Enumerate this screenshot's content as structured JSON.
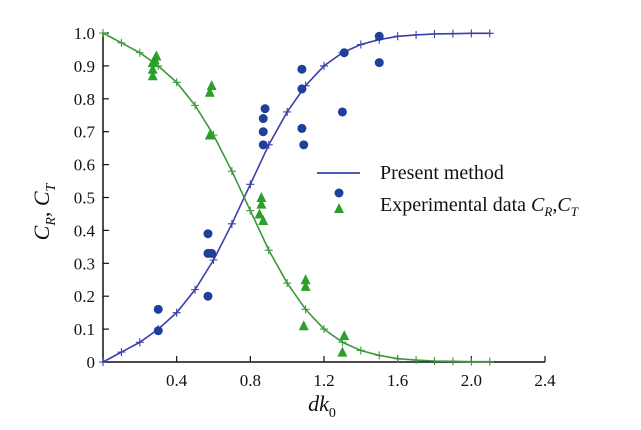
{
  "chart_data": {
    "type": "scatter",
    "xlabel": "dk",
    "xlabel_sub": "0",
    "ylabel": "C",
    "ylabel_sub1": "R",
    "ylabel_sep": ", ",
    "ylabel_sub2": "T",
    "xlim": [
      0,
      2.4
    ],
    "ylim": [
      0,
      1.0
    ],
    "xticks": [
      0.4,
      0.8,
      1.2,
      1.6,
      2.0,
      2.4
    ],
    "xtick_labels": [
      "0.4",
      "0.8",
      "1.2",
      "1.6",
      "2.0",
      "2.4"
    ],
    "yticks": [
      0,
      0.1,
      0.2,
      0.3,
      0.4,
      0.5,
      0.6,
      0.7,
      0.8,
      0.9,
      1.0
    ],
    "ytick_labels": [
      "0",
      "0.1",
      "0.2",
      "0.3",
      "0.4",
      "0.5",
      "0.6",
      "0.7",
      "0.8",
      "0.9",
      "1.0"
    ],
    "legend_position": "center-right",
    "legend": {
      "line_label": "Present method",
      "marker_label": "Experimental data ",
      "marker_label_c": "C",
      "marker_label_sub1": "R",
      "marker_label_sep": ",",
      "marker_label_c2": "C",
      "marker_label_sub2": "T"
    },
    "series": [
      {
        "style": "line-plus",
        "color": "#3b3fa8",
        "x": [
          0.0,
          0.1,
          0.2,
          0.3,
          0.4,
          0.5,
          0.6,
          0.7,
          0.8,
          0.9,
          1.0,
          1.1,
          1.2,
          1.3,
          1.4,
          1.5,
          1.6,
          1.7,
          1.8,
          1.9,
          2.0,
          2.1
        ],
        "y": [
          0.0,
          0.03,
          0.06,
          0.1,
          0.15,
          0.22,
          0.31,
          0.42,
          0.54,
          0.66,
          0.76,
          0.84,
          0.9,
          0.94,
          0.965,
          0.98,
          0.99,
          0.994,
          0.997,
          0.998,
          0.999,
          0.999
        ]
      },
      {
        "style": "line-plus",
        "color": "#3a9a3a",
        "x": [
          0.0,
          0.1,
          0.2,
          0.3,
          0.4,
          0.5,
          0.6,
          0.7,
          0.8,
          0.9,
          1.0,
          1.1,
          1.2,
          1.3,
          1.4,
          1.5,
          1.6,
          1.7,
          1.8,
          1.9,
          2.0,
          2.1
        ],
        "y": [
          1.0,
          0.97,
          0.94,
          0.9,
          0.85,
          0.78,
          0.69,
          0.58,
          0.46,
          0.34,
          0.24,
          0.16,
          0.1,
          0.06,
          0.035,
          0.02,
          0.01,
          0.006,
          0.003,
          0.002,
          0.001,
          0.001
        ]
      },
      {
        "style": "circle",
        "color": "#1f3f9a",
        "x": [
          0.3,
          0.3,
          0.57,
          0.57,
          0.57,
          0.59,
          0.87,
          0.87,
          0.87,
          0.88,
          1.08,
          1.08,
          1.08,
          1.09,
          1.3,
          1.31,
          1.5,
          1.5
        ],
        "y": [
          0.095,
          0.16,
          0.2,
          0.33,
          0.39,
          0.33,
          0.66,
          0.7,
          0.74,
          0.77,
          0.71,
          0.83,
          0.89,
          0.66,
          0.76,
          0.94,
          0.91,
          0.99
        ]
      },
      {
        "style": "triangle",
        "color": "#2aa02a",
        "x": [
          0.27,
          0.27,
          0.27,
          0.28,
          0.29,
          0.58,
          0.58,
          0.59,
          0.85,
          0.86,
          0.86,
          0.87,
          1.09,
          1.1,
          1.1,
          1.3,
          1.31
        ],
        "y": [
          0.87,
          0.89,
          0.91,
          0.92,
          0.93,
          0.69,
          0.82,
          0.84,
          0.45,
          0.48,
          0.5,
          0.43,
          0.11,
          0.23,
          0.25,
          0.03,
          0.08
        ]
      }
    ]
  }
}
